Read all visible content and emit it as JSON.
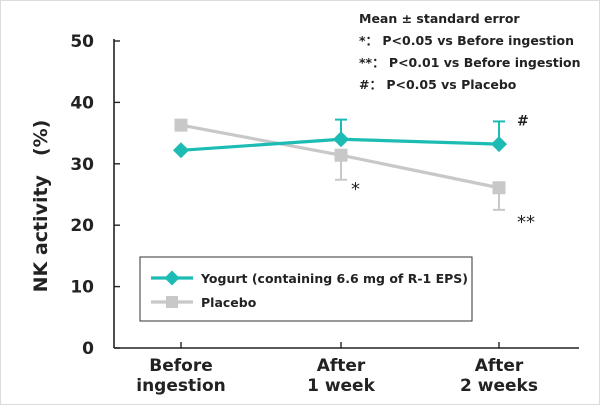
{
  "chart_data": {
    "type": "line",
    "ylabel": "NK activity　(%)",
    "ylim": [
      0,
      50
    ],
    "yticks": [
      0,
      10,
      20,
      30,
      40,
      50
    ],
    "categories": [
      "Before\ningestion",
      "After\n1 week",
      "After\n2 weeks"
    ],
    "series": [
      {
        "name": "Yogurt (containing 6.6 mg of R-1 EPS)",
        "color": "#1cbcb4",
        "marker": "diamond",
        "values": [
          32.2,
          34.0,
          33.2
        ],
        "error": [
          null,
          3.2,
          3.7
        ],
        "error_dir": "up"
      },
      {
        "name": "Placebo",
        "color": "#c8c8c8",
        "marker": "square",
        "values": [
          36.3,
          31.4,
          26.1
        ],
        "error": [
          null,
          4.0,
          3.6
        ],
        "error_dir": "down"
      }
    ],
    "annotations": [
      {
        "series": 1,
        "index": 1,
        "text": "*"
      },
      {
        "series": 1,
        "index": 2,
        "text": "**"
      },
      {
        "series": 0,
        "index": 2,
        "text": "#"
      }
    ],
    "notes": [
      "Mean ± standard error",
      "*： P<0.05 vs Before ingestion",
      "**： P<0.01 vs Before ingestion",
      "#： P<0.05 vs Placebo"
    ],
    "legend_position": "lower-left"
  }
}
